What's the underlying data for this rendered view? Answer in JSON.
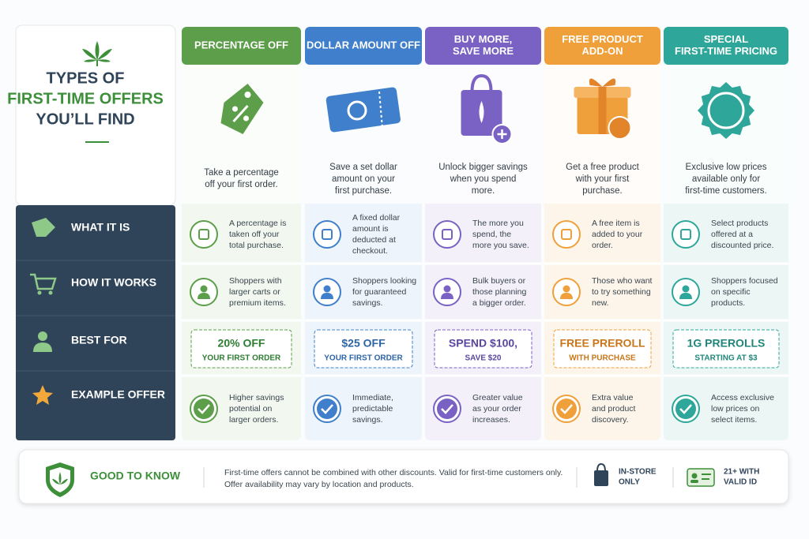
{
  "title": {
    "lines": [
      "TYPES OF",
      "FIRST-TIME OFFERS",
      "YOU’LL FIND"
    ]
  },
  "row_labels": [
    "WHAT IT IS",
    "HOW IT WORKS",
    "BEST FOR",
    "EXAMPLE OFFER"
  ],
  "columns": [
    {
      "header": [
        "PERCENTAGE OFF"
      ],
      "summary": [
        "Take a percentage",
        "off your first order."
      ],
      "what": [
        "A percentage is",
        "taken off your",
        "total purchase."
      ],
      "who": [
        "Shoppers with",
        "larger carts or",
        "premium items."
      ],
      "offer": [
        "20% OFF",
        "YOUR FIRST ORDER"
      ],
      "benefit": [
        "Higher savings",
        "potential on",
        "larger orders."
      ]
    },
    {
      "header": [
        "DOLLAR AMOUNT OFF"
      ],
      "summary": [
        "Save a set dollar",
        "amount on your",
        "first purchase."
      ],
      "what": [
        "A fixed dollar",
        "amount is",
        "deducted at",
        "checkout."
      ],
      "who": [
        "Shoppers looking",
        "for guaranteed",
        "savings."
      ],
      "offer": [
        "$25 OFF",
        "YOUR FIRST ORDER"
      ],
      "benefit": [
        "Immediate,",
        "predictable",
        "savings."
      ]
    },
    {
      "header": [
        "BUY MORE,",
        "SAVE MORE"
      ],
      "summary": [
        "Unlock bigger savings",
        "when you spend",
        "more."
      ],
      "what": [
        "The more you",
        "spend, the",
        "more you save."
      ],
      "who": [
        "Bulk buyers or",
        "those planning",
        "a bigger order."
      ],
      "offer": [
        "SPEND $100,",
        "SAVE $20"
      ],
      "benefit": [
        "Greater value",
        "as your order",
        "increases."
      ]
    },
    {
      "header": [
        "FREE PRODUCT",
        "ADD-ON"
      ],
      "summary": [
        "Get a free product",
        "with your first",
        "purchase."
      ],
      "what": [
        "A free item is",
        "added to your",
        "order."
      ],
      "who": [
        "Those who want",
        "to try something",
        "new."
      ],
      "offer": [
        "FREE PREROLL",
        "WITH PURCHASE"
      ],
      "benefit": [
        "Extra value",
        "and product",
        "discovery."
      ]
    },
    {
      "header": [
        "SPECIAL",
        "FIRST-TIME PRICING"
      ],
      "summary": [
        "Exclusive low prices",
        "available only for",
        "first-time customers."
      ],
      "what": [
        "Select products",
        "offered at a",
        "discounted price."
      ],
      "who": [
        "Shoppers focused",
        "on specific",
        "products."
      ],
      "offer": [
        "1G PREROLLS",
        "STARTING AT $3"
      ],
      "benefit": [
        "Access exclusive",
        "low prices on",
        "select items."
      ]
    }
  ],
  "footer": {
    "heading": "GOOD TO KNOW",
    "notes": [
      "First-time offers cannot be combined with other discounts. Valid for first-time customers only.",
      "Offer availability may vary by location and products."
    ],
    "badges": [
      [
        "IN-STORE",
        "ONLY"
      ],
      [
        "21+ WITH",
        "VALID ID"
      ]
    ]
  }
}
